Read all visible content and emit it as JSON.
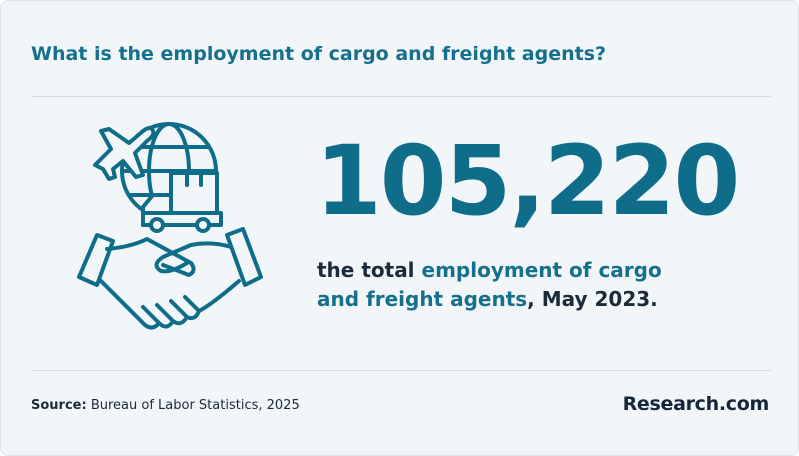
{
  "header": {
    "title": "What is the employment of cargo and freight agents?"
  },
  "stat": {
    "value": "105,220",
    "description": {
      "prefix": "the total ",
      "highlight": "employment of cargo and freight agents",
      "suffix": ", May 2023."
    }
  },
  "footer": {
    "source_label": "Source:",
    "source": "Bureau of Labor Statistics, 2025",
    "brand": "Research.com"
  }
}
